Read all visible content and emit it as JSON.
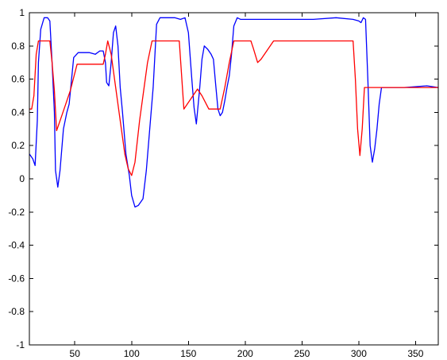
{
  "chart_data": {
    "type": "line",
    "title": "",
    "xlabel": "",
    "ylabel": "",
    "xlim": [
      10,
      370
    ],
    "ylim": [
      -1,
      1
    ],
    "xticks": [
      50,
      100,
      150,
      200,
      250,
      300,
      350
    ],
    "yticks": [
      -1,
      -0.8,
      -0.6,
      -0.4,
      -0.2,
      0,
      0.2,
      0.4,
      0.6,
      0.8,
      1
    ],
    "xtick_labels": [
      "50",
      "100",
      "150",
      "200",
      "250",
      "300",
      "350"
    ],
    "ytick_labels": [
      "-1",
      "-0.8",
      "-0.6",
      "-0.4",
      "-0.2",
      "0",
      "0.2",
      "0.4",
      "0.6",
      "0.8",
      "1"
    ],
    "grid": false,
    "legend": "none",
    "series": [
      {
        "color": "#0000ff",
        "x": [
          10,
          13,
          15,
          17,
          18,
          20,
          23,
          26,
          28,
          30,
          32,
          33,
          35,
          37,
          40,
          43,
          45,
          49,
          53,
          58,
          63,
          68,
          72,
          75,
          77,
          78,
          80,
          82,
          84,
          86,
          88,
          90,
          92,
          95,
          98,
          100,
          103,
          106,
          110,
          113,
          116,
          119,
          122,
          125,
          128,
          133,
          138,
          143,
          147,
          150,
          153,
          155,
          157,
          160,
          162,
          164,
          167,
          170,
          172,
          174,
          176,
          178,
          180,
          182,
          184,
          186,
          188,
          190,
          193,
          196,
          200,
          210,
          220,
          240,
          260,
          280,
          295,
          300,
          302,
          304,
          306,
          308,
          310,
          312,
          314,
          316,
          318,
          320,
          322,
          340,
          360,
          370
        ],
        "y": [
          0.15,
          0.12,
          0.08,
          0.35,
          0.7,
          0.9,
          0.97,
          0.97,
          0.95,
          0.7,
          0.4,
          0.05,
          -0.05,
          0.05,
          0.3,
          0.4,
          0.45,
          0.73,
          0.76,
          0.76,
          0.76,
          0.75,
          0.77,
          0.77,
          0.7,
          0.58,
          0.56,
          0.7,
          0.88,
          0.92,
          0.8,
          0.55,
          0.4,
          0.15,
          0.02,
          -0.1,
          -0.17,
          -0.16,
          -0.12,
          0.05,
          0.3,
          0.55,
          0.93,
          0.97,
          0.97,
          0.97,
          0.97,
          0.96,
          0.97,
          0.88,
          0.6,
          0.43,
          0.33,
          0.55,
          0.72,
          0.8,
          0.78,
          0.75,
          0.72,
          0.57,
          0.42,
          0.38,
          0.4,
          0.47,
          0.55,
          0.62,
          0.75,
          0.92,
          0.97,
          0.96,
          0.96,
          0.96,
          0.96,
          0.96,
          0.96,
          0.97,
          0.96,
          0.95,
          0.94,
          0.97,
          0.96,
          0.6,
          0.2,
          0.1,
          0.18,
          0.3,
          0.45,
          0.55,
          0.55,
          0.55,
          0.56,
          0.55
        ]
      },
      {
        "color": "#ff0000",
        "x": [
          10,
          12,
          14,
          16,
          18,
          19,
          28,
          30,
          32,
          34,
          38,
          42,
          46,
          49,
          52,
          56,
          60,
          65,
          70,
          75,
          77,
          79,
          82,
          86,
          90,
          94,
          97,
          100,
          103,
          107,
          111,
          114,
          118,
          122,
          142,
          146,
          150,
          154,
          158,
          162,
          168,
          178,
          182,
          186,
          190,
          193,
          205,
          207,
          211,
          214,
          220,
          225,
          240,
          260,
          280,
          295,
          297,
          299,
          301,
          303,
          305,
          370
        ],
        "y": [
          0.42,
          0.42,
          0.5,
          0.75,
          0.83,
          0.83,
          0.83,
          0.7,
          0.53,
          0.29,
          0.37,
          0.45,
          0.53,
          0.61,
          0.69,
          0.69,
          0.69,
          0.69,
          0.69,
          0.69,
          0.75,
          0.83,
          0.75,
          0.55,
          0.35,
          0.15,
          0.06,
          0.02,
          0.1,
          0.35,
          0.55,
          0.7,
          0.83,
          0.83,
          0.83,
          0.42,
          0.46,
          0.5,
          0.54,
          0.5,
          0.42,
          0.42,
          0.55,
          0.7,
          0.83,
          0.83,
          0.83,
          0.79,
          0.7,
          0.72,
          0.78,
          0.83,
          0.83,
          0.83,
          0.83,
          0.83,
          0.6,
          0.3,
          0.14,
          0.3,
          0.55,
          0.55
        ]
      }
    ]
  }
}
